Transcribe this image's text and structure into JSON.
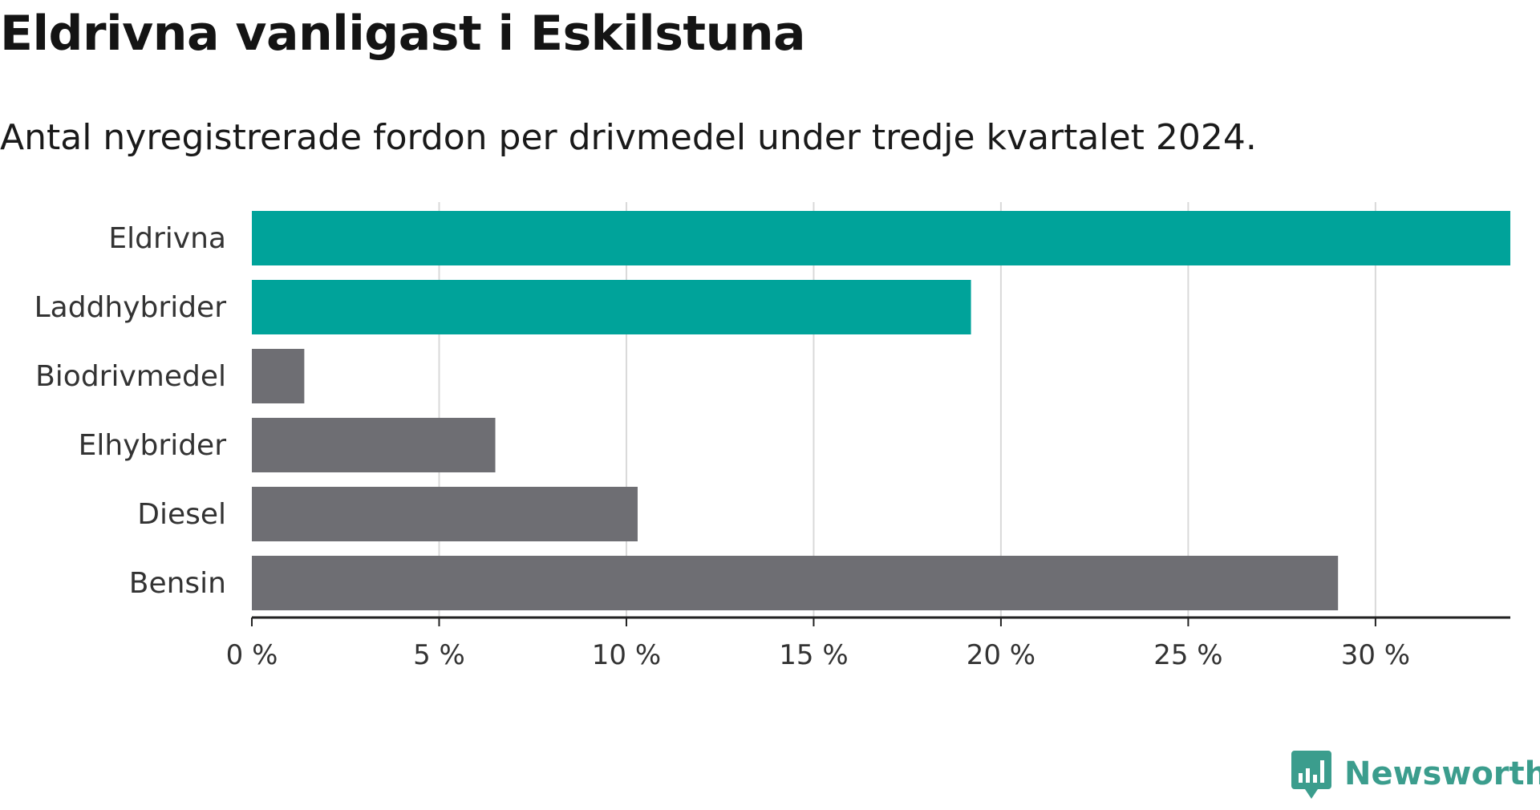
{
  "chart_data": {
    "type": "bar",
    "orientation": "horizontal",
    "title": "Eldrivna vanligast i Eskilstuna",
    "subtitle": "Antal nyregistrerade fordon per drivmedel under tredje kvartalet 2024.",
    "categories": [
      "Eldrivna",
      "Laddhybrider",
      "Biodrivmedel",
      "Elhybrider",
      "Diesel",
      "Bensin"
    ],
    "values": [
      33.6,
      19.2,
      1.4,
      6.5,
      10.3,
      29.0
    ],
    "highlighted": [
      true,
      true,
      false,
      false,
      false,
      false
    ],
    "unit": "%",
    "xlim": [
      0,
      33.6
    ],
    "xticks": [
      0,
      5,
      10,
      15,
      20,
      25,
      30
    ],
    "xtick_labels": [
      "0 %",
      "5 %",
      "10 %",
      "15 %",
      "20 %",
      "25 %",
      "30 %"
    ],
    "xlabel": "",
    "ylabel": "",
    "grid": "vertical",
    "legend": "none"
  },
  "colors": {
    "highlight": "#00a39a",
    "default": "#6e6e73",
    "grid": "#d9d9d9",
    "axis": "#222222",
    "brand": "#3b9d8d"
  },
  "brand": {
    "name": "Newsworthy",
    "icon": "newsworthy-logo-icon"
  }
}
